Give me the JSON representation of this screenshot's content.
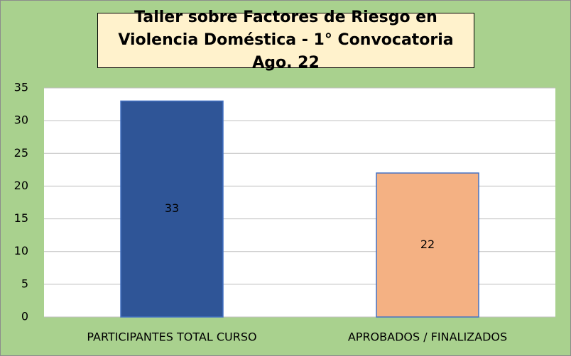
{
  "chart_data": {
    "type": "bar",
    "title": "Taller sobre Factores de Riesgo en Violencia Doméstica - 1° Convocatoria Ago. 22",
    "categories": [
      "PARTICIPANTES TOTAL CURSO",
      "APROBADOS / FINALIZADOS"
    ],
    "values": [
      33,
      22
    ],
    "colors": [
      "#2f5597",
      "#f4b183"
    ],
    "ylim": [
      0,
      35
    ],
    "yticks": [
      0,
      5,
      10,
      15,
      20,
      25,
      30,
      35
    ],
    "grid": true
  }
}
